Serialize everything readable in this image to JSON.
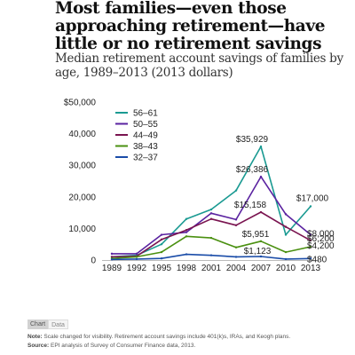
{
  "title": "Most families—even those approaching retirement—have little or no retirement savings",
  "subtitle": "Median retirement account savings of families by age, 1989–2013 (2013 dollars)",
  "tabs": {
    "chart": "Chart",
    "data": "Data"
  },
  "note": {
    "label": "Note:",
    "text": "Scale changed for visibility. Retirement account savings include 401(k)s, IRAs, and Keogh plans."
  },
  "source": {
    "label": "Source:",
    "text": "EPI analysis of  Survey of Consumer Finance data, 2013."
  },
  "chart_data": {
    "type": "line",
    "x": [
      "1989",
      "1992",
      "1995",
      "1998",
      "2001",
      "2004",
      "2007",
      "2010",
      "2013"
    ],
    "ylim": [
      0,
      50000
    ],
    "yticks": [
      0,
      10000,
      20000,
      30000,
      40000,
      50000
    ],
    "ytick_labels": [
      "0",
      "10,000",
      "20,000",
      "30,000",
      "40,000",
      "$50,000"
    ],
    "legend_position": "top-left",
    "series": [
      {
        "name": "56–61",
        "color": "#1a9a92",
        "values": [
          1000,
          1500,
          5000,
          13000,
          16000,
          22000,
          35929,
          8000,
          17000
        ]
      },
      {
        "name": "50–55",
        "color": "#5a22a0",
        "values": [
          2000,
          2000,
          8000,
          8800,
          14800,
          12800,
          26386,
          14500,
          8000
        ]
      },
      {
        "name": "44–49",
        "color": "#7a1450",
        "values": [
          1000,
          1200,
          6500,
          9500,
          13000,
          11000,
          15158,
          10500,
          6200
        ]
      },
      {
        "name": "38–43",
        "color": "#4a9010",
        "values": [
          500,
          1000,
          2500,
          7500,
          7000,
          4000,
          5951,
          2500,
          4200
        ]
      },
      {
        "name": "32–37",
        "color": "#1a4ca8",
        "values": [
          200,
          300,
          500,
          1800,
          1500,
          1000,
          1123,
          300,
          480
        ]
      }
    ],
    "annotations": [
      {
        "series": 0,
        "x": "2007",
        "text": "$35,929"
      },
      {
        "series": 1,
        "x": "2007",
        "text": "$26,386"
      },
      {
        "series": 2,
        "x": "2007",
        "text": "$15,158"
      },
      {
        "series": 3,
        "x": "2007",
        "text": "$5,951"
      },
      {
        "series": 4,
        "x": "2007",
        "text": "$1,123"
      },
      {
        "series": 0,
        "x": "2013",
        "text": "$17,000"
      },
      {
        "series": 1,
        "x": "2013",
        "text": "$8,000"
      },
      {
        "series": 2,
        "x": "2013",
        "text": "$6,200"
      },
      {
        "series": 3,
        "x": "2013",
        "text": "$4,200"
      },
      {
        "series": 4,
        "x": "2013",
        "text": "$480"
      }
    ]
  }
}
